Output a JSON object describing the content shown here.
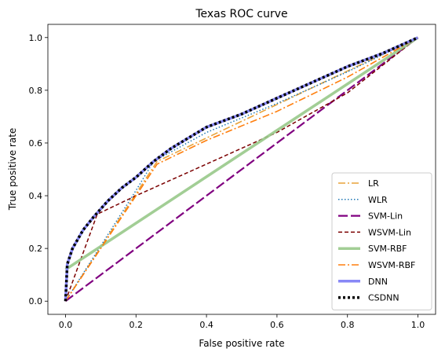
{
  "chart_data": {
    "type": "line",
    "title": "Texas ROC curve",
    "xlabel": "False positive rate",
    "ylabel": "True positive rate",
    "xlim": [
      -0.05,
      1.05
    ],
    "ylim": [
      -0.05,
      1.05
    ],
    "xticks": [
      0.0,
      0.2,
      0.4,
      0.6,
      0.8,
      1.0
    ],
    "yticks": [
      0.0,
      0.2,
      0.4,
      0.6,
      0.8,
      1.0
    ],
    "xtick_labels": [
      "0.0",
      "0.2",
      "0.4",
      "0.6",
      "0.8",
      "1.0"
    ],
    "ytick_labels": [
      "0.0",
      "0.2",
      "0.4",
      "0.6",
      "0.8",
      "1.0"
    ],
    "grid": false,
    "legend_position": "lower-right",
    "series": [
      {
        "name": "LR",
        "color": "#e8a33a",
        "style": "dashdot",
        "x": [
          0,
          0.26,
          1
        ],
        "y": [
          0,
          0.53,
          1
        ]
      },
      {
        "name": "WLR",
        "color": "#1f77b4",
        "style": "dotted",
        "x": [
          0,
          0.2,
          0.25,
          0.4,
          0.6,
          0.8,
          1
        ],
        "y": [
          0,
          0.42,
          0.53,
          0.64,
          0.75,
          0.87,
          1
        ]
      },
      {
        "name": "SVM-Lin",
        "color": "#800080",
        "style": "dashed",
        "x": [
          0,
          1
        ],
        "y": [
          0,
          1
        ]
      },
      {
        "name": "WSVM-Lin",
        "color": "#7b0000",
        "style": "dashed",
        "x": [
          0,
          0.09,
          0.2,
          0.4,
          0.6,
          0.8,
          1
        ],
        "y": [
          0,
          0.33,
          0.4,
          0.52,
          0.64,
          0.79,
          1
        ]
      },
      {
        "name": "SVM-RBF",
        "color": "#98c98a",
        "style": "solid-thick",
        "x": [
          0,
          1
        ],
        "y": [
          0.12,
          1
        ]
      },
      {
        "name": "WSVM-RBF",
        "color": "#ff7f0e",
        "style": "dashdot",
        "x": [
          0,
          0.26,
          0.4,
          0.6,
          0.8,
          1
        ],
        "y": [
          0,
          0.52,
          0.61,
          0.72,
          0.85,
          1
        ]
      },
      {
        "name": "DNN",
        "color": "#7b7bf5",
        "style": "solid-thick",
        "x": [
          0,
          0.005,
          0.02,
          0.05,
          0.08,
          0.12,
          0.16,
          0.2,
          0.25,
          0.3,
          0.35,
          0.4,
          0.5,
          0.6,
          0.7,
          0.8,
          0.9,
          1.0
        ],
        "y": [
          0,
          0.14,
          0.2,
          0.27,
          0.32,
          0.38,
          0.43,
          0.47,
          0.53,
          0.58,
          0.62,
          0.66,
          0.71,
          0.77,
          0.83,
          0.89,
          0.94,
          1.0
        ]
      },
      {
        "name": "CSDNN",
        "color": "#000000",
        "style": "dotted-thick",
        "x": [
          0,
          0.005,
          0.02,
          0.05,
          0.08,
          0.12,
          0.16,
          0.2,
          0.25,
          0.3,
          0.35,
          0.4,
          0.5,
          0.6,
          0.7,
          0.8,
          0.9,
          1.0
        ],
        "y": [
          0,
          0.14,
          0.2,
          0.27,
          0.32,
          0.38,
          0.43,
          0.47,
          0.53,
          0.58,
          0.62,
          0.66,
          0.71,
          0.77,
          0.83,
          0.89,
          0.94,
          1.0
        ]
      }
    ]
  }
}
